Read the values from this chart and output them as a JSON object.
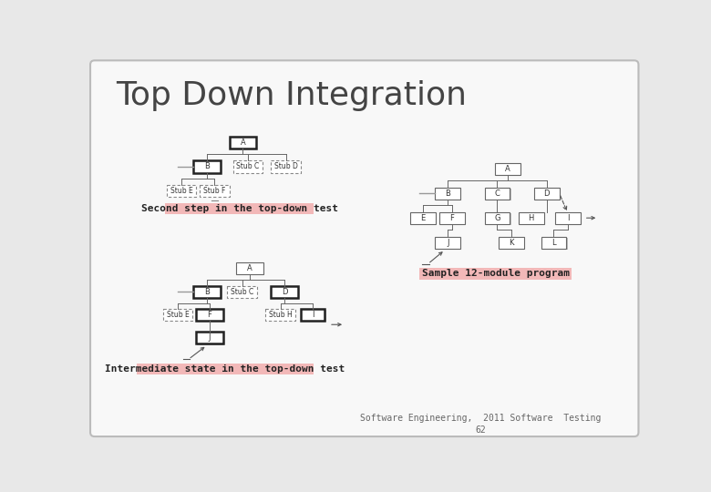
{
  "title": "Top Down Integration",
  "title_fontsize": 26,
  "title_color": "#444444",
  "bg_color": "#e8e8e8",
  "slide_bg": "#f8f8f8",
  "label1": "Second step in the top-down test",
  "label2": "Sample 12-module program",
  "label3": "Intermediate state in the top-down test",
  "label_bg": "#f2b8b8",
  "label_fontsize": 8,
  "footer": "Software Engineering,  2011 Software  Testing\n62",
  "footer_fontsize": 7,
  "box_color": "#ffffff",
  "box_edge": "#666666",
  "box_thick_edge": "#222222",
  "dashed_edge": "#888888",
  "shadow_color": "#bbbbbb",
  "line_color": "#666666"
}
